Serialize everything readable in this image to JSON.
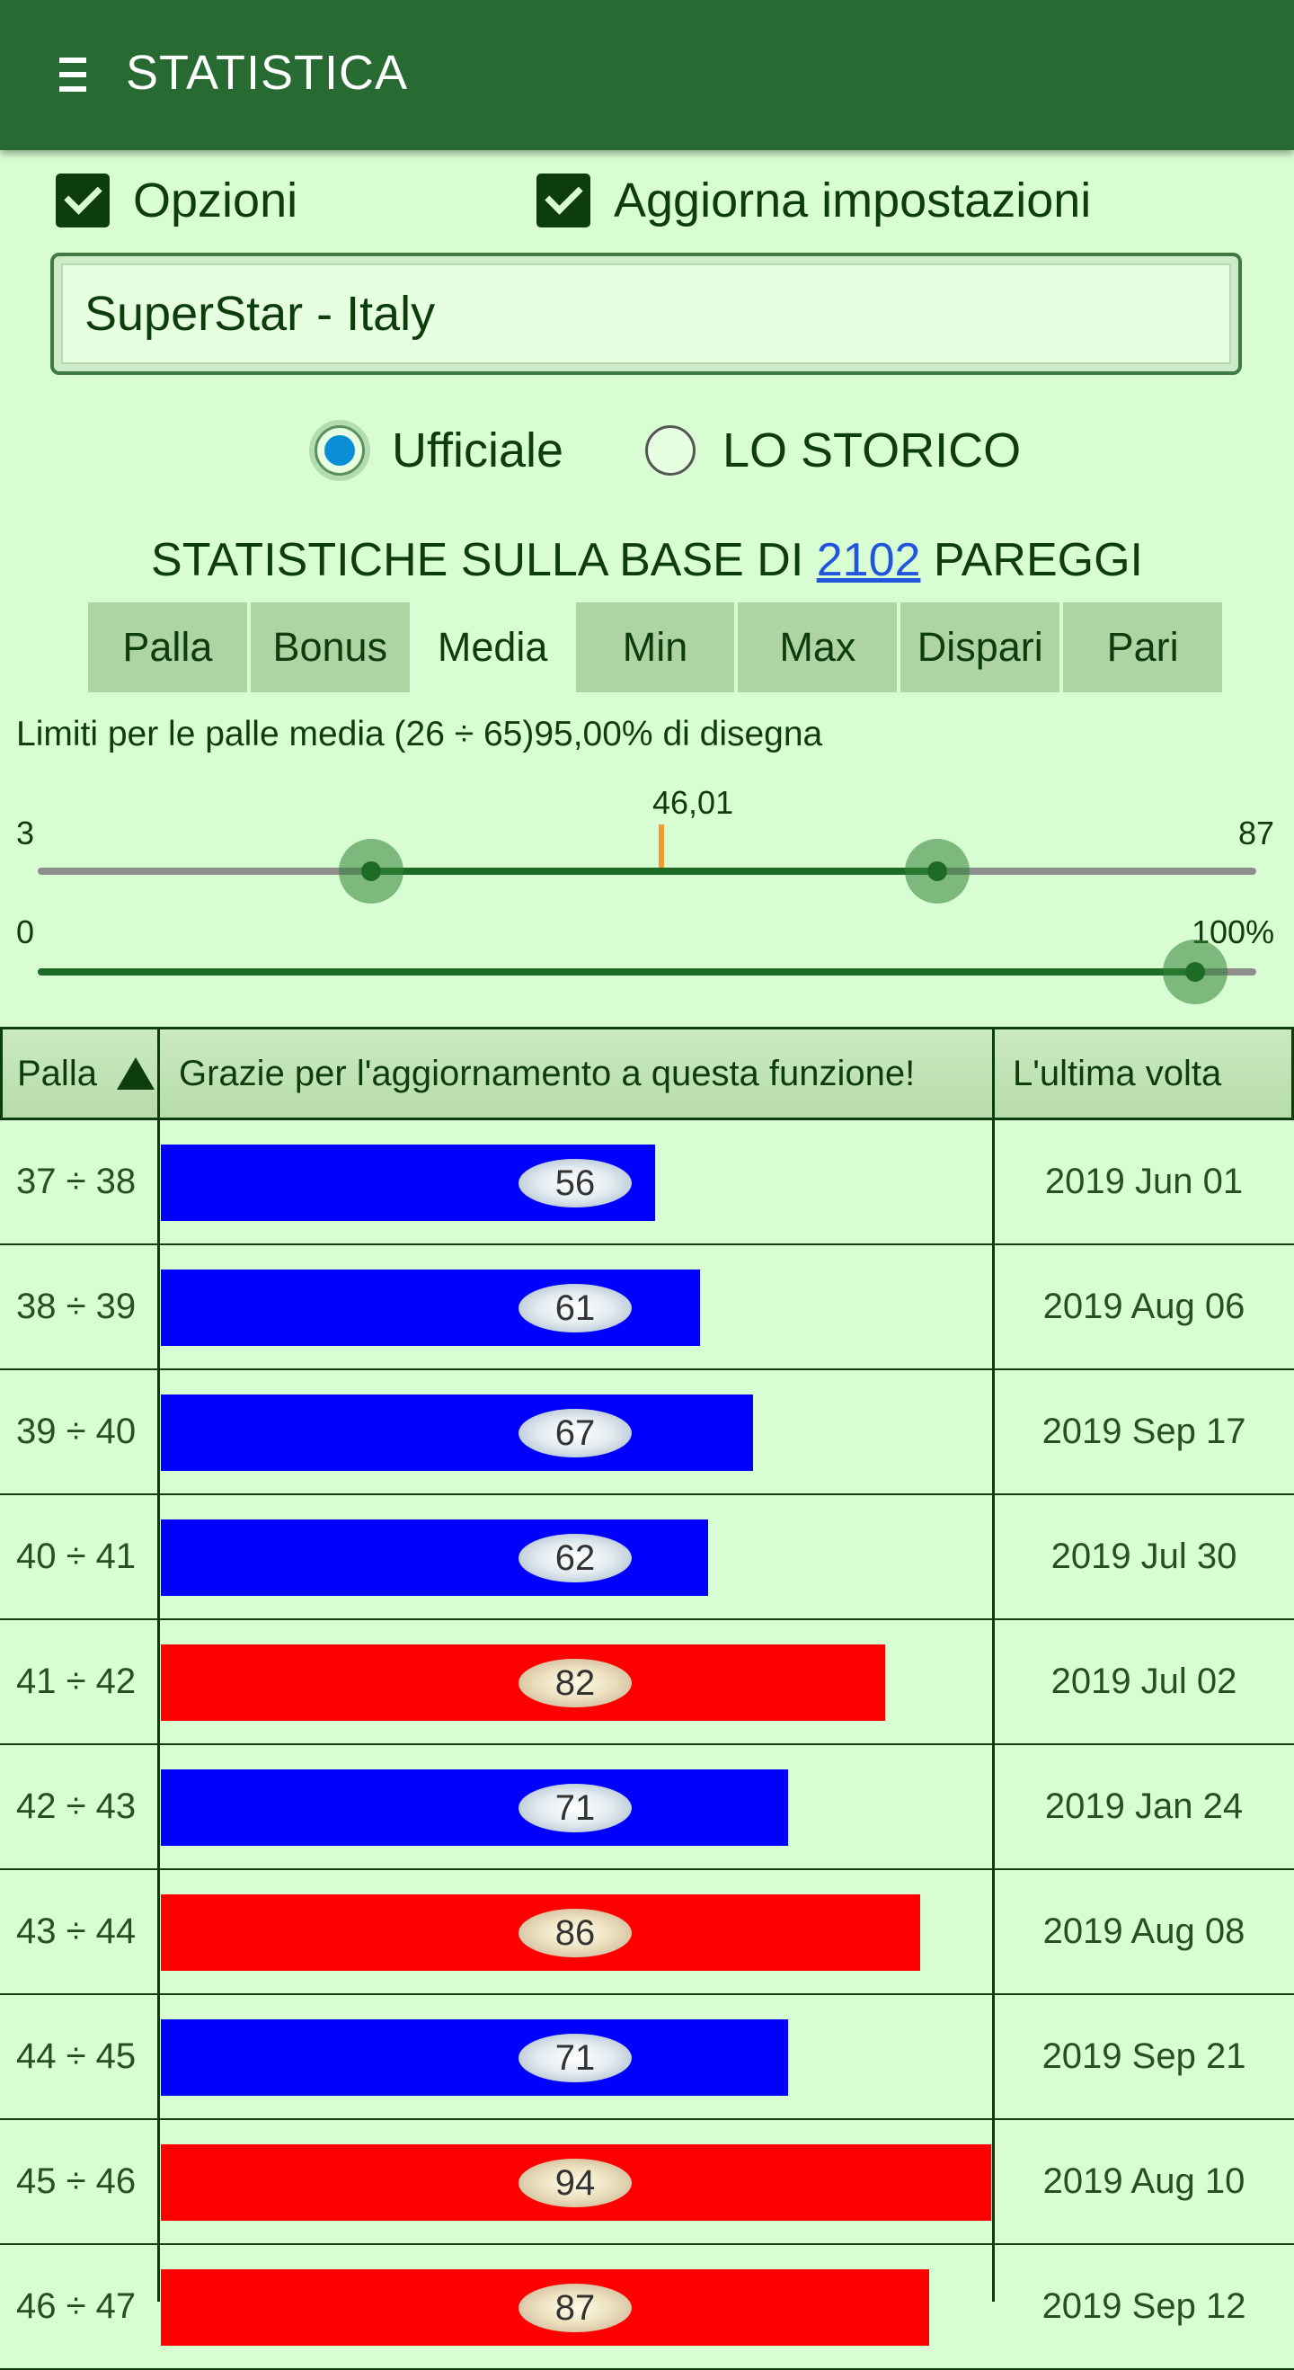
{
  "appbar": {
    "title": "STATISTICA"
  },
  "options": {
    "opzioni_label": "Opzioni",
    "aggiorna_label": "Aggiorna impostazioni"
  },
  "game": {
    "selected": "SuperStar - Italy"
  },
  "mode": {
    "ufficiale_label": "Ufficiale",
    "storico_label": "LO STORICO",
    "selected": "Ufficiale"
  },
  "headline": {
    "prefix": "STATISTICHE SULLA BASE DI ",
    "count": "2102",
    "suffix": " PAREGGI"
  },
  "tabs": [
    {
      "label": "Palla"
    },
    {
      "label": "Bonus"
    },
    {
      "label": "Media",
      "active": true
    },
    {
      "label": "Min"
    },
    {
      "label": "Max"
    },
    {
      "label": "Dispari"
    },
    {
      "label": "Pari"
    }
  ],
  "limits_text": "Limiti per le palle media (26 ÷ 65)95,00% di disegna",
  "range_slider": {
    "min_label": "3",
    "max_label": "87",
    "mean_label": "46,01",
    "min": 3,
    "max": 87,
    "low": 26,
    "high": 65,
    "mean": 46.01
  },
  "percent_slider": {
    "min_label": "0",
    "max_label": "100%",
    "value": 95
  },
  "table": {
    "headers": {
      "palla": "Palla",
      "message": "Grazie per l'aggiornamento a questa funzione!",
      "last": "L'ultima volta"
    },
    "bar_max": 94,
    "rows": [
      {
        "range": "37 ÷ 38",
        "value": 56,
        "display": "56",
        "color": "#0000ff",
        "date": "2019 Jun 01"
      },
      {
        "range": "38 ÷ 39",
        "value": 61,
        "display": "61",
        "color": "#0000ff",
        "date": "2019 Aug 06"
      },
      {
        "range": "39 ÷ 40",
        "value": 67,
        "display": "67",
        "color": "#0000ff",
        "date": "2019 Sep 17"
      },
      {
        "range": "40 ÷ 41",
        "value": 62,
        "display": "62",
        "color": "#0000ff",
        "date": "2019 Jul 30"
      },
      {
        "range": "41 ÷ 42",
        "value": 82,
        "display": "82",
        "color": "#ff0000",
        "date": "2019 Jul 02"
      },
      {
        "range": "42 ÷ 43",
        "value": 71,
        "display": "71",
        "color": "#0000ff",
        "date": "2019 Jan 24"
      },
      {
        "range": "43 ÷ 44",
        "value": 86,
        "display": "86",
        "color": "#ff0000",
        "date": "2019 Aug 08"
      },
      {
        "range": "44 ÷ 45",
        "value": 71,
        "display": "71",
        "color": "#0000ff",
        "date": "2019 Sep 21"
      },
      {
        "range": "45 ÷ 46",
        "value": 94,
        "display": "94",
        "color": "#ff0000",
        "date": "2019 Aug 10"
      },
      {
        "range": "46 ÷ 47",
        "value": 87,
        "display": "87",
        "color": "#ff0000",
        "date": "2019 Sep 12"
      }
    ]
  }
}
